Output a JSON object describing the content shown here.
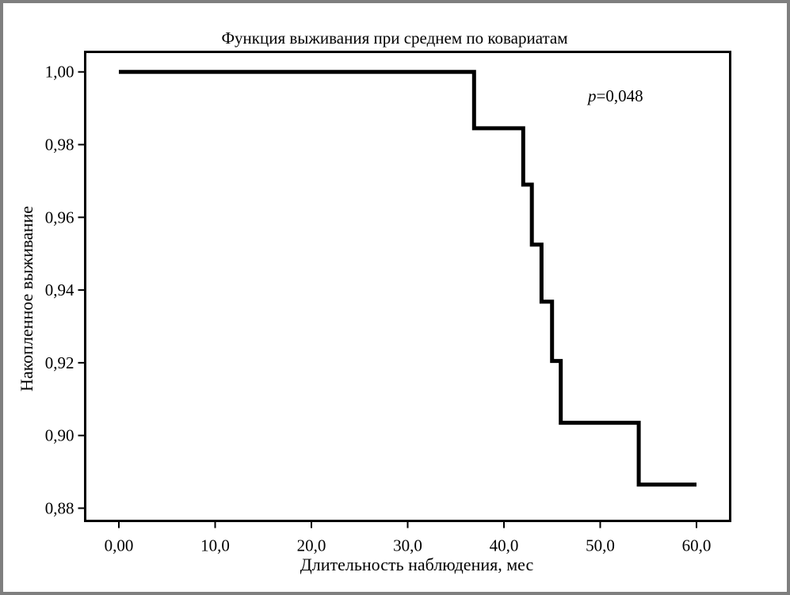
{
  "chart_data": {
    "type": "line",
    "title": "Функция выживания при среднем по ковариатам",
    "xlabel": "Длительность наблюдения, мес",
    "ylabel": "Накопленное выживание",
    "xlim": [
      -3.5,
      63.5
    ],
    "ylim": [
      0.8765,
      1.0055
    ],
    "x_ticks": [
      0,
      10,
      20,
      30,
      40,
      50,
      60
    ],
    "x_tick_labels": [
      "0,00",
      "10,0",
      "20,0",
      "30,0",
      "40,0",
      "50,0",
      "60,0"
    ],
    "y_ticks": [
      1.0,
      0.98,
      0.96,
      0.94,
      0.92,
      0.9,
      0.88
    ],
    "y_tick_labels": [
      "1,00",
      "0,98",
      "0,96",
      "0,94",
      "0,92",
      "0,90",
      "0,88"
    ],
    "grid": false,
    "annotations": [
      {
        "p_symbol": "p",
        "text": "=0,048"
      }
    ],
    "series": [
      {
        "step": "post",
        "x": [
          0,
          36.9,
          42.0,
          42.9,
          43.9,
          45.0,
          45.9,
          54.0,
          60.0
        ],
        "y": [
          1.0,
          0.9845,
          0.969,
          0.9525,
          0.9368,
          0.9205,
          0.9035,
          0.8865,
          0.8865
        ]
      }
    ]
  }
}
